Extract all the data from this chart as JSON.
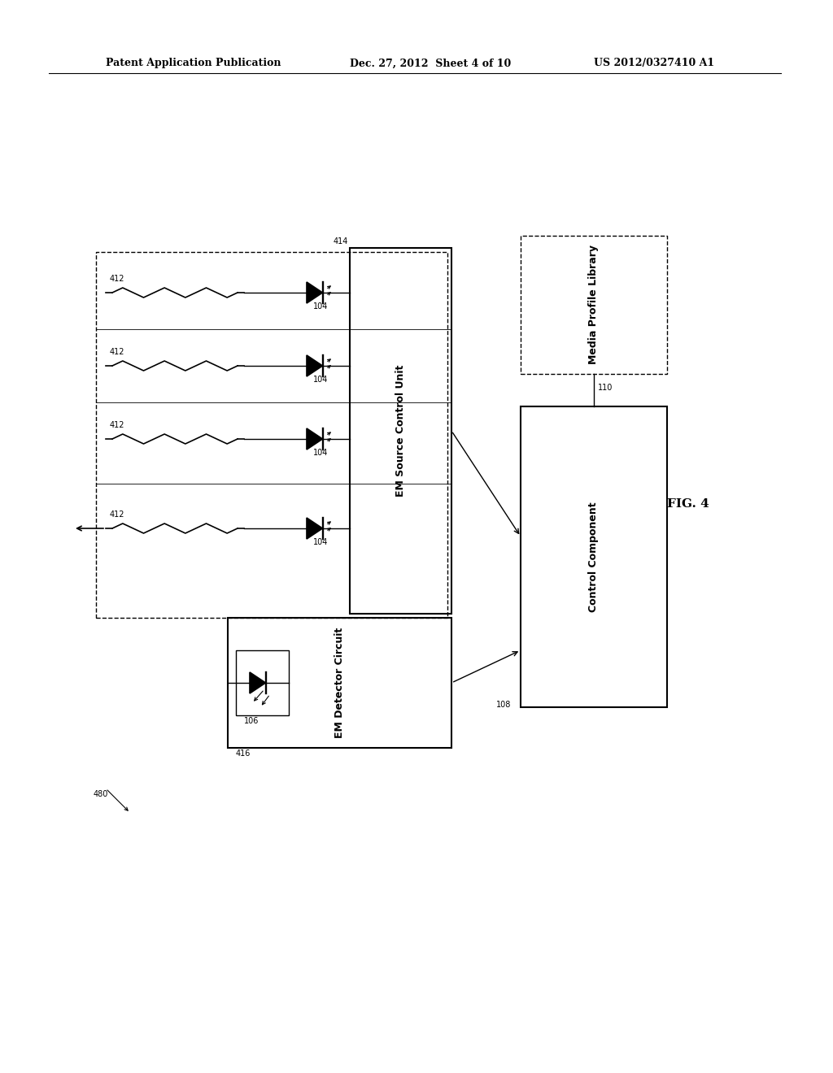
{
  "header_left": "Patent Application Publication",
  "header_mid": "Dec. 27, 2012  Sheet 4 of 10",
  "header_right": "US 2012/0327410 A1",
  "fig_label": "FIG. 4",
  "label_480": "480",
  "label_416": "416",
  "label_414": "414",
  "label_110": "110",
  "label_108": "108",
  "label_412": "412",
  "label_104": "104",
  "label_106": "106",
  "box_em_source": "EM Source Control Unit",
  "box_em_detector": "EM Detector Circuit",
  "box_control": "Control Component",
  "box_media": "Media Profile Library",
  "bg_color": "#ffffff",
  "line_color": "#000000",
  "text_color": "#000000"
}
